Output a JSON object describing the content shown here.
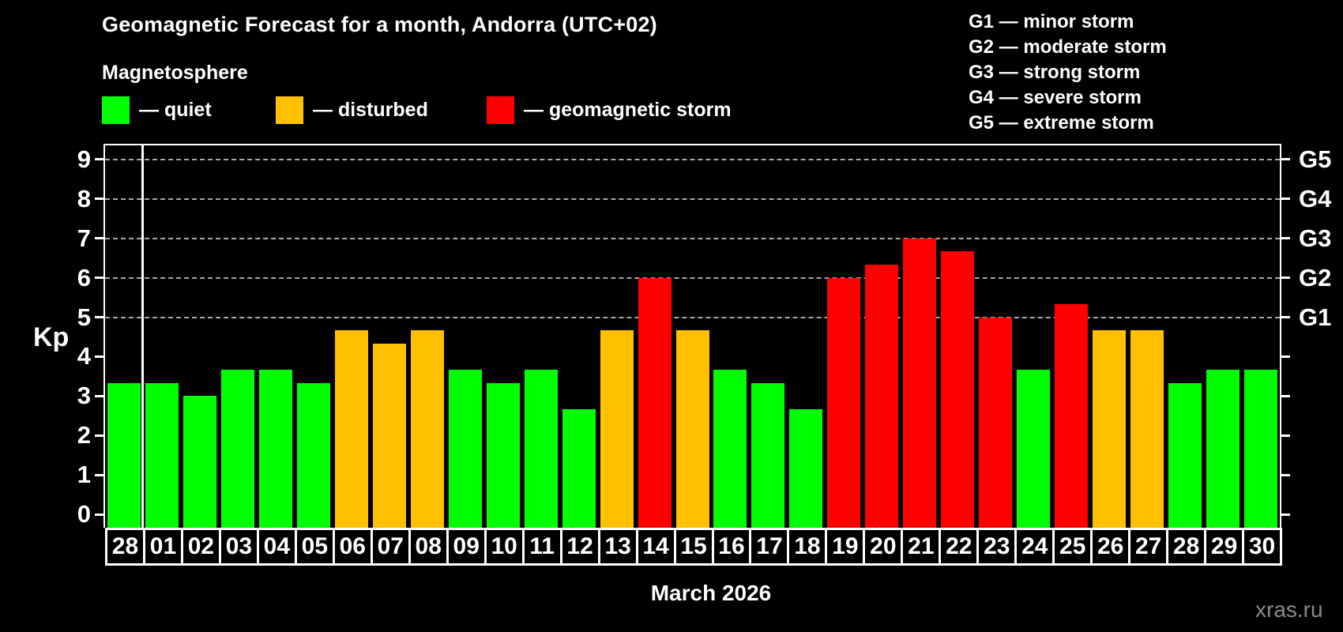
{
  "title": "Geomagnetic Forecast for a month, Andorra (UTC+02)",
  "subtitle": "Magnetosphere",
  "legend": {
    "items": [
      {
        "key": "quiet",
        "label": "— quiet",
        "color": "#00ff00"
      },
      {
        "key": "disturbed",
        "label": "— disturbed",
        "color": "#ffc000"
      },
      {
        "key": "storm",
        "label": "— geomagnetic storm",
        "color": "#ff0000"
      }
    ]
  },
  "storm_scale_legend": {
    "lines": [
      "G1 — minor storm",
      "G2 — moderate storm",
      "G3 — strong storm",
      "G4 — severe storm",
      "G5 — extreme storm"
    ]
  },
  "watermark": "xras.ru",
  "chart_data": {
    "type": "bar",
    "title": "Geomagnetic Forecast for a month, Andorra (UTC+02)",
    "xlabel": "March 2026",
    "month_label": "March 2026",
    "ylabel": "Kp",
    "ylim": [
      0,
      9
    ],
    "yticks": [
      0,
      1,
      2,
      3,
      4,
      5,
      6,
      7,
      8,
      9
    ],
    "gridline_values": [
      5,
      6,
      7,
      8,
      9
    ],
    "grid": "horizontal dashed lines at Kp 5-9 (G1-G5 storm levels)",
    "legend_position": "top-left",
    "categories": [
      "28",
      "01",
      "02",
      "03",
      "04",
      "05",
      "06",
      "07",
      "08",
      "09",
      "10",
      "11",
      "12",
      "13",
      "14",
      "15",
      "16",
      "17",
      "18",
      "19",
      "20",
      "21",
      "22",
      "23",
      "24",
      "25",
      "26",
      "27",
      "28",
      "29",
      "30"
    ],
    "values": [
      3.33,
      3.33,
      3.0,
      3.67,
      3.67,
      3.33,
      4.67,
      4.33,
      4.67,
      3.67,
      3.33,
      3.67,
      2.67,
      4.67,
      6.0,
      4.67,
      3.67,
      3.33,
      2.67,
      6.0,
      6.33,
      7.0,
      6.67,
      5.0,
      3.67,
      5.33,
      4.67,
      4.67,
      3.33,
      3.67,
      3.67
    ],
    "statuses": [
      "quiet",
      "quiet",
      "quiet",
      "quiet",
      "quiet",
      "quiet",
      "disturbed",
      "disturbed",
      "disturbed",
      "quiet",
      "quiet",
      "quiet",
      "quiet",
      "disturbed",
      "storm",
      "disturbed",
      "quiet",
      "quiet",
      "quiet",
      "storm",
      "storm",
      "storm",
      "storm",
      "storm",
      "quiet",
      "storm",
      "disturbed",
      "disturbed",
      "quiet",
      "quiet",
      "quiet"
    ],
    "status_colors": {
      "quiet": "#00ff00",
      "disturbed": "#ffc000",
      "storm": "#ff0000"
    },
    "right_axis_labels": [
      {
        "label": "G1",
        "value": 5
      },
      {
        "label": "G2",
        "value": 6
      },
      {
        "label": "G3",
        "value": 7
      },
      {
        "label": "G4",
        "value": 8
      },
      {
        "label": "G5",
        "value": 9
      }
    ],
    "separator_after_index": 0
  }
}
